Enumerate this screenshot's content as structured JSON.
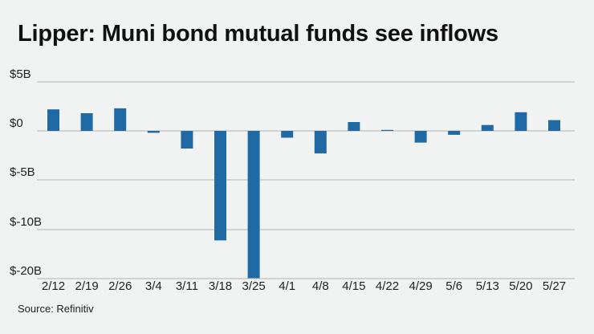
{
  "title": "Lipper: Muni bond mutual funds see inflows",
  "source": "Source: Refinitiv",
  "chart_data": {
    "type": "bar",
    "title": "Lipper: Muni bond mutual funds see inflows",
    "xlabel": "",
    "ylabel": "",
    "grid": true,
    "y_ticks": [
      "$5B",
      "$0",
      "$-5B",
      "$-10B",
      "$-20B"
    ],
    "y_tick_values": [
      5,
      0,
      -5,
      -10,
      -20
    ],
    "categories": [
      "2/12",
      "2/19",
      "2/26",
      "3/4",
      "3/11",
      "3/18",
      "3/25",
      "4/1",
      "4/8",
      "4/15",
      "4/22",
      "4/29",
      "5/6",
      "5/13",
      "5/20",
      "5/27"
    ],
    "values": [
      2.2,
      1.8,
      2.3,
      -0.2,
      -1.8,
      -12.2,
      -19.9,
      -0.7,
      -2.3,
      0.9,
      0.1,
      -1.2,
      -0.4,
      0.6,
      1.9,
      1.1
    ],
    "bar_color": "#1f6aa5",
    "grid_color": "#b3b3b3"
  }
}
